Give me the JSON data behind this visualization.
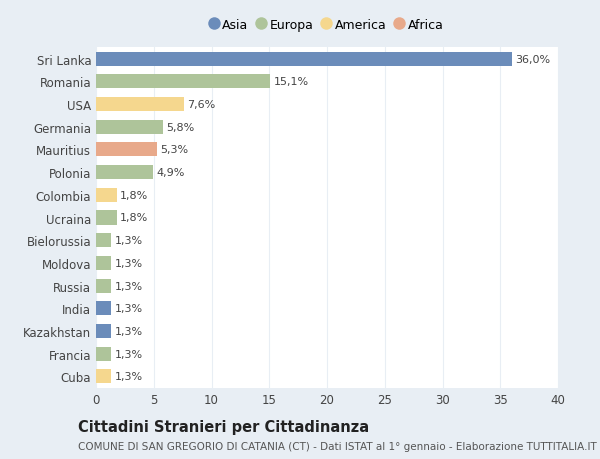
{
  "categories": [
    "Sri Lanka",
    "Romania",
    "USA",
    "Germania",
    "Mauritius",
    "Polonia",
    "Colombia",
    "Ucraina",
    "Bielorussia",
    "Moldova",
    "Russia",
    "India",
    "Kazakhstan",
    "Francia",
    "Cuba"
  ],
  "values": [
    36.0,
    15.1,
    7.6,
    5.8,
    5.3,
    4.9,
    1.8,
    1.8,
    1.3,
    1.3,
    1.3,
    1.3,
    1.3,
    1.3,
    1.3
  ],
  "labels": [
    "36,0%",
    "15,1%",
    "7,6%",
    "5,8%",
    "5,3%",
    "4,9%",
    "1,8%",
    "1,8%",
    "1,3%",
    "1,3%",
    "1,3%",
    "1,3%",
    "1,3%",
    "1,3%",
    "1,3%"
  ],
  "colors": [
    "#6b8cba",
    "#aec49a",
    "#f5d78e",
    "#aec49a",
    "#e8a98a",
    "#aec49a",
    "#f5d78e",
    "#aec49a",
    "#aec49a",
    "#aec49a",
    "#aec49a",
    "#6b8cba",
    "#6b8cba",
    "#aec49a",
    "#f5d78e"
  ],
  "legend": [
    {
      "label": "Asia",
      "color": "#6b8cba"
    },
    {
      "label": "Europa",
      "color": "#aec49a"
    },
    {
      "label": "America",
      "color": "#f5d78e"
    },
    {
      "label": "Africa",
      "color": "#e8a98a"
    }
  ],
  "xlim": [
    0,
    40
  ],
  "xticks": [
    0,
    5,
    10,
    15,
    20,
    25,
    30,
    35,
    40
  ],
  "title": "Cittadini Stranieri per Cittadinanza",
  "subtitle": "COMUNE DI SAN GREGORIO DI CATANIA (CT) - Dati ISTAT al 1° gennaio - Elaborazione TUTTITALIA.IT",
  "outer_bg": "#e8eef4",
  "plot_bg": "#ffffff",
  "grid_color": "#e8eef4",
  "text_color": "#444444",
  "label_fontsize": 8.0,
  "tick_fontsize": 8.5,
  "title_fontsize": 10.5,
  "subtitle_fontsize": 7.5
}
